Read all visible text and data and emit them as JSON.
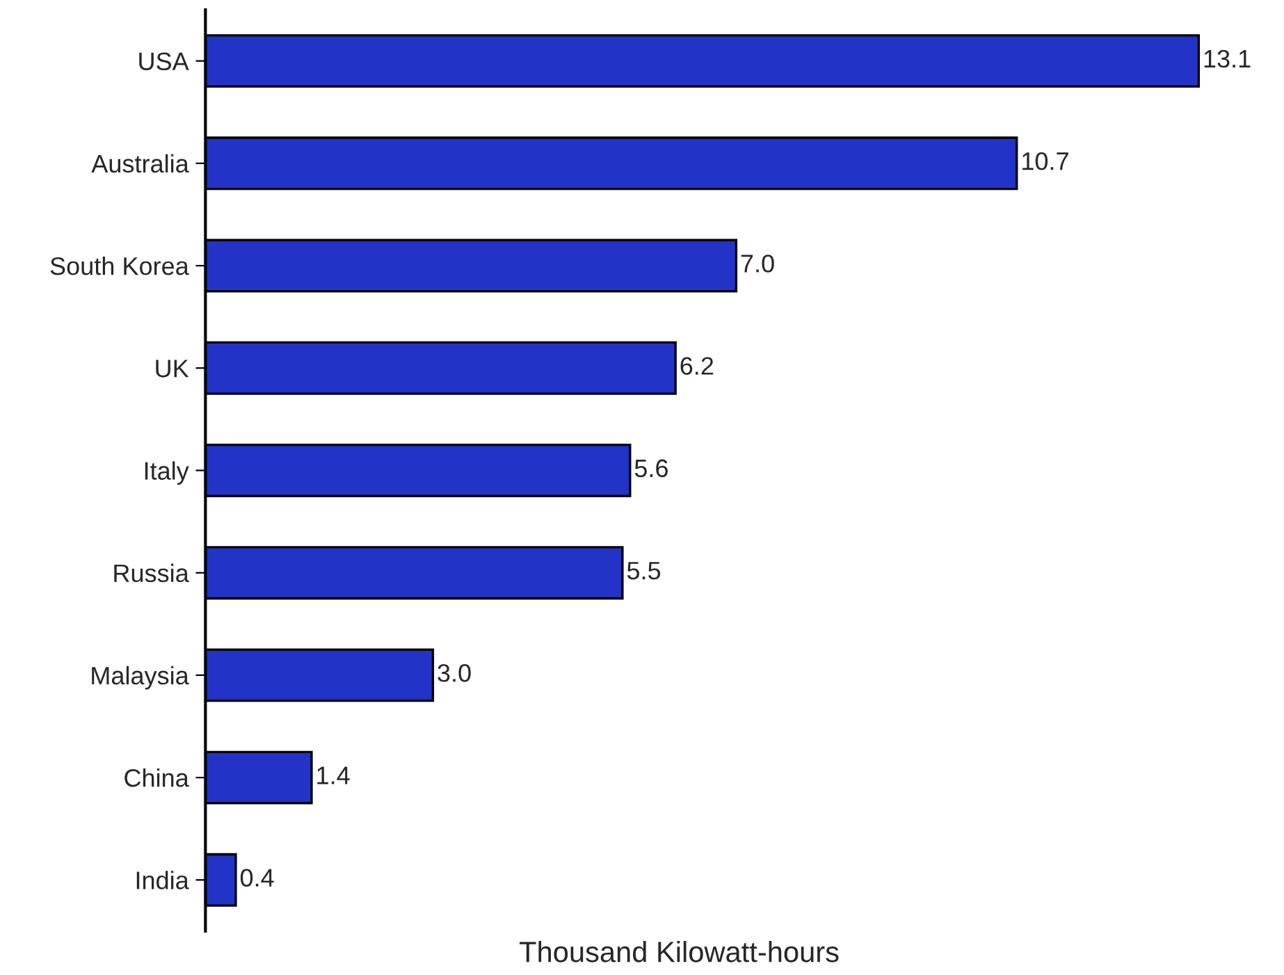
{
  "chart_data": {
    "type": "bar",
    "orientation": "horizontal",
    "xlabel": "Thousand Kilowatt-hours",
    "categories": [
      "USA",
      "Australia",
      "South Korea",
      "UK",
      "Italy",
      "Russia",
      "Malaysia",
      "China",
      "India"
    ],
    "values": [
      13.1,
      10.7,
      7.0,
      6.2,
      5.6,
      5.5,
      3.0,
      1.4,
      0.4
    ],
    "value_labels": [
      "13.1",
      "10.7",
      "7.0",
      "6.2",
      "5.6",
      "5.5",
      "3.0",
      "1.4",
      "0.4"
    ],
    "color": "#2234c8",
    "tick_labels": "y",
    "grid": false,
    "legend": false
  }
}
